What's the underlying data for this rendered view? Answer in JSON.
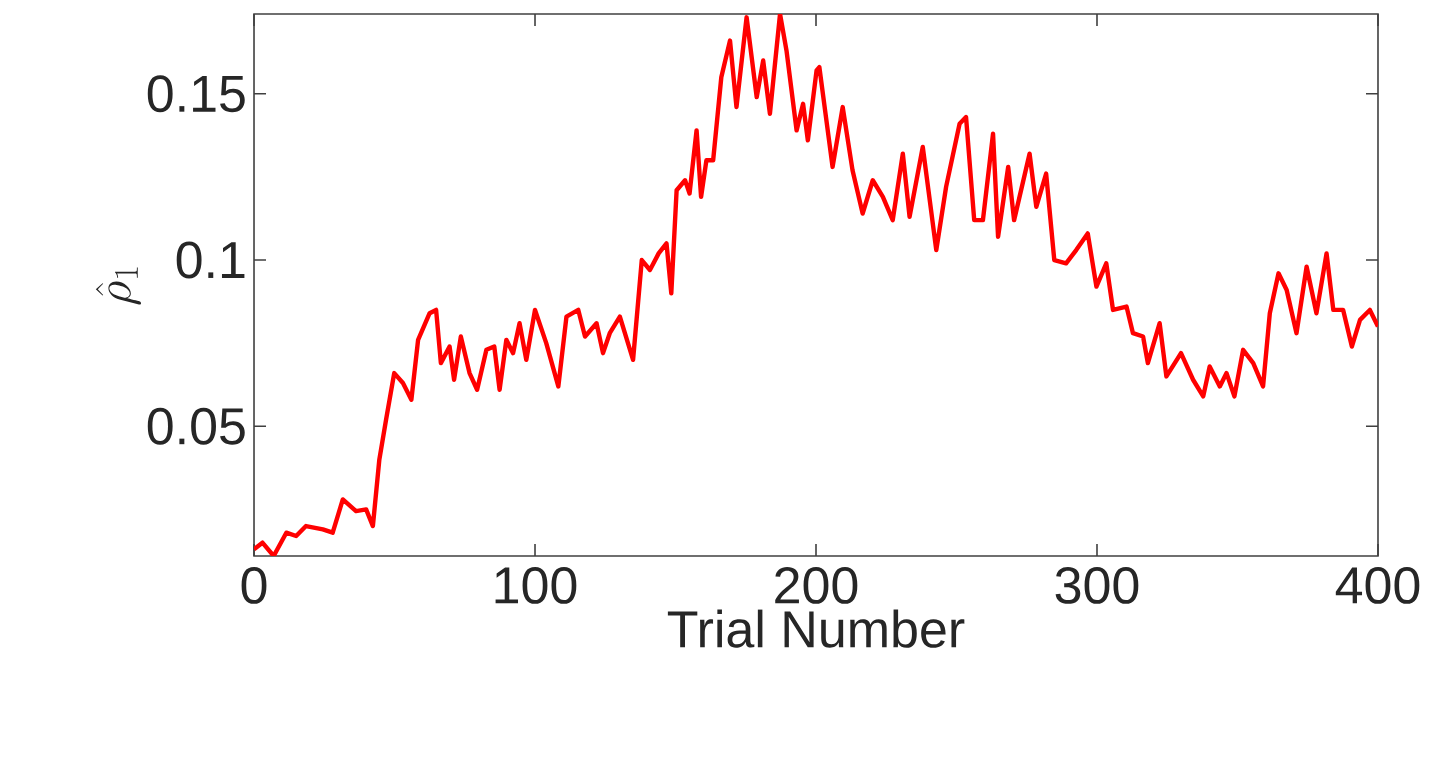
{
  "chart_data": {
    "type": "line",
    "xlabel": "Trial Number",
    "ylabel": "\\hat{\\rho}_1",
    "xlim": [
      0,
      400
    ],
    "ylim": [
      0.011,
      0.174
    ],
    "xticks": [
      0,
      100,
      200,
      300,
      400
    ],
    "yticks": [
      0.05,
      0.1,
      0.15
    ],
    "series": [
      {
        "color": "#ff0000",
        "x": [
          0,
          3,
          7,
          11.5,
          15,
          18.5,
          24.5,
          28,
          31.6,
          36.3,
          39.9,
          42.3,
          44.6,
          47,
          49.9,
          53,
          56,
          58.4,
          62.5,
          64.8,
          66.5,
          69.6,
          71.2,
          73.6,
          76.7,
          79.4,
          82.7,
          85.5,
          87.4,
          89.8,
          92.2,
          94.5,
          96.9,
          100,
          104,
          108.3,
          111.2,
          115.4,
          117.8,
          121.9,
          124.2,
          126.6,
          130.2,
          134.9,
          138,
          140.9,
          144,
          146.8,
          148.5,
          150.4,
          153.4,
          155,
          157.5,
          159.1,
          161,
          163.4,
          166.3,
          169.4,
          171.7,
          175.3,
          178.9,
          181.2,
          183.6,
          187.2,
          189.5,
          193.1,
          195.4,
          197.1,
          200.2,
          201.2,
          205.9,
          209.5,
          213,
          216.6,
          220.2,
          223.8,
          227.3,
          230.9,
          233.3,
          238,
          242.8,
          246.3,
          251.1,
          253.4,
          256.3,
          259.4,
          263,
          264.8,
          268.4,
          270.5,
          276,
          278.4,
          281.9,
          284.8,
          289,
          292.6,
          296.7,
          299.8,
          303.3,
          305.7,
          310.5,
          312.8,
          316.4,
          318.1,
          322.3,
          324.7,
          329.9,
          334.2,
          337.8,
          340.1,
          343.7,
          346.1,
          348.9,
          352,
          355.6,
          359.1,
          361.5,
          364.6,
          367.5,
          371,
          374.6,
          378.1,
          381.7,
          384.1,
          387.6,
          390.7,
          393.6,
          397.1,
          400
        ],
        "values": [
          0.013,
          0.015,
          0.011,
          0.018,
          0.017,
          0.02,
          0.019,
          0.018,
          0.028,
          0.0245,
          0.025,
          0.02,
          0.04,
          0.052,
          0.066,
          0.063,
          0.058,
          0.076,
          0.084,
          0.085,
          0.069,
          0.074,
          0.064,
          0.077,
          0.066,
          0.061,
          0.073,
          0.074,
          0.061,
          0.076,
          0.072,
          0.081,
          0.07,
          0.085,
          0.075,
          0.062,
          0.083,
          0.085,
          0.077,
          0.081,
          0.072,
          0.078,
          0.083,
          0.07,
          0.1,
          0.097,
          0.102,
          0.105,
          0.09,
          0.121,
          0.124,
          0.12,
          0.139,
          0.119,
          0.13,
          0.13,
          0.155,
          0.166,
          0.146,
          0.173,
          0.149,
          0.16,
          0.144,
          0.174,
          0.163,
          0.139,
          0.147,
          0.136,
          0.157,
          0.158,
          0.128,
          0.146,
          0.127,
          0.114,
          0.124,
          0.119,
          0.112,
          0.132,
          0.113,
          0.134,
          0.103,
          0.122,
          0.141,
          0.143,
          0.112,
          0.112,
          0.138,
          0.107,
          0.128,
          0.112,
          0.132,
          0.116,
          0.126,
          0.1,
          0.099,
          0.103,
          0.108,
          0.092,
          0.099,
          0.085,
          0.086,
          0.078,
          0.077,
          0.069,
          0.081,
          0.065,
          0.072,
          0.064,
          0.059,
          0.068,
          0.062,
          0.066,
          0.059,
          0.073,
          0.069,
          0.062,
          0.084,
          0.096,
          0.091,
          0.078,
          0.098,
          0.084,
          0.102,
          0.085,
          0.085,
          0.074,
          0.082,
          0.085,
          0.08
        ]
      }
    ]
  }
}
